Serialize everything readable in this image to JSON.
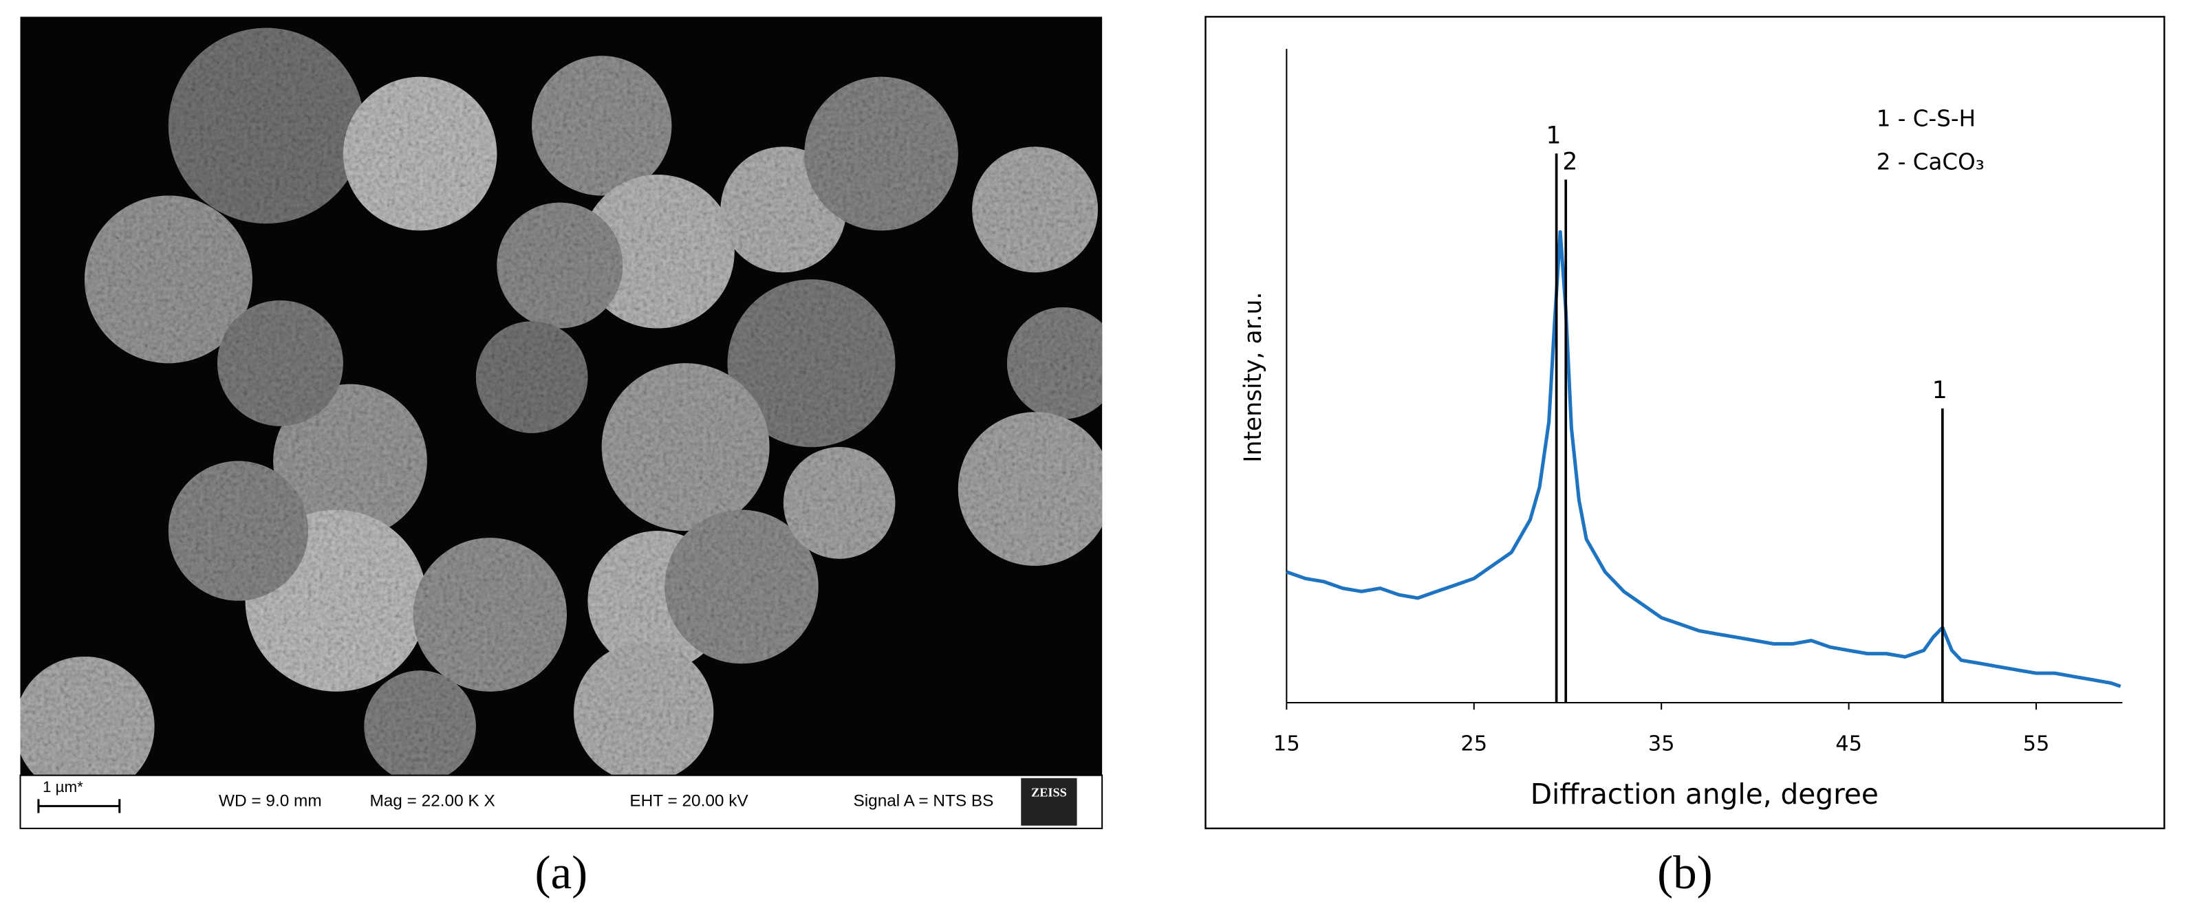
{
  "figure": {
    "captions": [
      "(a)",
      "(b)"
    ]
  },
  "sem_image": {
    "scale_bar": "1 µm*",
    "wd": "WD =  9.0 mm",
    "mag": "Mag =  22.00 K X",
    "eht": "EHT = 20.00 kV",
    "signal": "Signal A = NTS BS",
    "logo": "ZEISS"
  },
  "chart_data": {
    "type": "line",
    "xlabel": "Diffraction angle, degree",
    "ylabel": "Intensity, ar.u.",
    "xlim": [
      15,
      59.6
    ],
    "ylim": [
      0,
      100
    ],
    "xticks": [
      15,
      25,
      35,
      45,
      55
    ],
    "x": [
      15,
      16,
      17,
      18,
      19,
      20,
      21,
      22,
      23,
      24,
      25,
      26,
      27,
      28,
      28.5,
      29,
      29.3,
      29.6,
      29.9,
      30.2,
      30.6,
      31,
      32,
      33,
      34,
      35,
      36,
      37,
      38,
      39,
      40,
      41,
      42,
      43,
      44,
      45,
      46,
      47,
      48,
      49,
      49.5,
      50,
      50.5,
      51,
      52,
      53,
      54,
      55,
      56,
      57,
      58,
      59,
      59.5
    ],
    "series": [
      {
        "color": "#1f74c2",
        "values": [
          20,
          19,
          18.5,
          17.5,
          17,
          17.5,
          16.5,
          16,
          17,
          18,
          19,
          21,
          23,
          28,
          33,
          43,
          58,
          72,
          60,
          42,
          31,
          25,
          20,
          17,
          15,
          13,
          12,
          11,
          10.5,
          10,
          9.5,
          9,
          9,
          9.5,
          8.5,
          8,
          7.5,
          7.5,
          7,
          8,
          10,
          11.5,
          8,
          6.5,
          6,
          5.5,
          5,
          4.5,
          4.5,
          4,
          3.5,
          3,
          2.5
        ]
      }
    ],
    "annotations": [
      "1 - C-S-H",
      "2 - CaCO₃"
    ],
    "peak_lines": [
      {
        "x": 29.4,
        "y": 84,
        "label": "1"
      },
      {
        "x": 29.9,
        "y": 80,
        "label": "2"
      },
      {
        "x": 50,
        "y": 45,
        "label": "1"
      }
    ]
  }
}
